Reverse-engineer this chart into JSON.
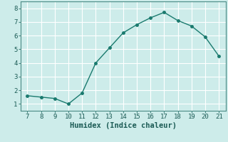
{
  "x": [
    7,
    8,
    9,
    10,
    11,
    12,
    13,
    14,
    15,
    16,
    17,
    18,
    19,
    20,
    21
  ],
  "y": [
    1.6,
    1.5,
    1.4,
    1.0,
    1.8,
    4.0,
    5.1,
    6.2,
    6.8,
    7.3,
    7.7,
    7.1,
    6.7,
    5.9,
    4.5
  ],
  "line_color": "#1a7a6e",
  "marker": "o",
  "markersize": 2.5,
  "linewidth": 1.0,
  "xlabel": "Humidex (Indice chaleur)",
  "xlabel_fontsize": 7.5,
  "xlim": [
    6.5,
    21.5
  ],
  "ylim": [
    0.5,
    8.5
  ],
  "xticks": [
    7,
    8,
    9,
    10,
    11,
    12,
    13,
    14,
    15,
    16,
    17,
    18,
    19,
    20,
    21
  ],
  "yticks": [
    1,
    2,
    3,
    4,
    5,
    6,
    7,
    8
  ],
  "bg_color": "#cdecea",
  "grid_color": "#ffffff",
  "tick_fontsize": 6.5,
  "spine_color": "#4a8a84"
}
